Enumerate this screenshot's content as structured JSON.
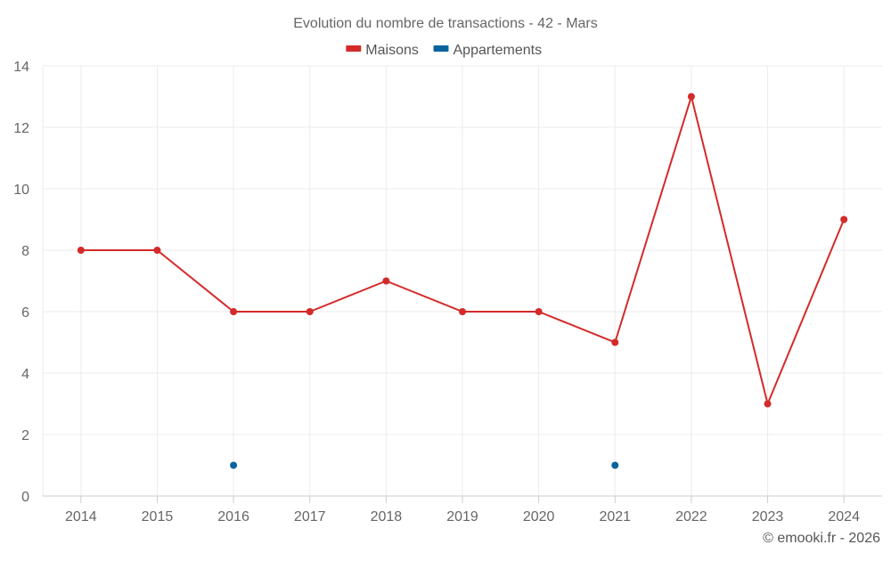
{
  "chart_data": {
    "type": "line",
    "title": "Evolution du nombre de transactions - 42 - Mars",
    "categories": [
      "2014",
      "2015",
      "2016",
      "2017",
      "2018",
      "2019",
      "2020",
      "2021",
      "2022",
      "2023",
      "2024"
    ],
    "series": [
      {
        "name": "Maisons",
        "color": "#d42a2a",
        "values": [
          8,
          8,
          6,
          6,
          7,
          6,
          6,
          5,
          13,
          3,
          9
        ]
      },
      {
        "name": "Appartements",
        "color": "#0b639e",
        "values": [
          null,
          null,
          1,
          null,
          null,
          null,
          null,
          1,
          null,
          null,
          null
        ]
      }
    ],
    "ylim": [
      0,
      14
    ],
    "yticks": [
      0,
      2,
      4,
      6,
      8,
      10,
      12,
      14
    ],
    "grid": true,
    "legend_position": "top-center",
    "credit": "© emooki.fr - 2026"
  }
}
